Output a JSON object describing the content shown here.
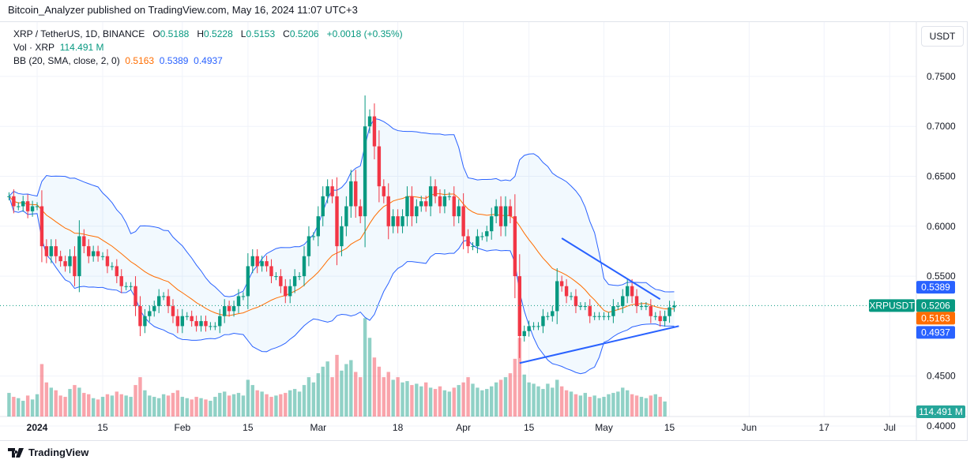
{
  "header": {
    "published": "Bitcoin_Analyzer published on TradingView.com, May 16, 2024 11:07 UTC+3"
  },
  "legend": {
    "symbol": "XRP / TetherUS, 1D, BINANCE",
    "o_label": "O",
    "o": "0.5188",
    "h_label": "H",
    "h": "0.5228",
    "l_label": "L",
    "l": "0.5153",
    "c_label": "C",
    "c": "0.5206",
    "change": "+0.0018 (+0.35%)",
    "vol_label": "Vol · XRP",
    "vol": "114.491 M",
    "bb_label": "BB (20, SMA, close, 2, 0)",
    "bb_basis": "0.5163",
    "bb_upper": "0.5389",
    "bb_lower": "0.4937"
  },
  "currency_button": "USDT",
  "footer": {
    "brand": "TradingView"
  },
  "colors": {
    "up": "#089981",
    "down": "#f23645",
    "bb_basis": "#ff6d00",
    "bb_band": "#2962ff",
    "trendline": "#2962ff"
  },
  "chart_data": {
    "type": "candlestick",
    "start_date": "2023-12-26",
    "ylim": [
      0.385,
      0.76
    ],
    "y_ticks": [
      "0.4000",
      "0.4500",
      "0.5500",
      "0.6000",
      "0.6500",
      "0.7000",
      "0.7500"
    ],
    "x_ticks": [
      {
        "label": "2024",
        "date": "2024-01-01"
      },
      {
        "label": "15",
        "date": "2024-01-15"
      },
      {
        "label": "Feb",
        "date": "2024-02-01"
      },
      {
        "label": "15",
        "date": "2024-02-15"
      },
      {
        "label": "Mar",
        "date": "2024-03-01"
      },
      {
        "label": "18",
        "date": "2024-03-18"
      },
      {
        "label": "Apr",
        "date": "2024-04-01"
      },
      {
        "label": "15",
        "date": "2024-04-15"
      },
      {
        "label": "May",
        "date": "2024-05-01"
      },
      {
        "label": "15",
        "date": "2024-05-15"
      },
      {
        "label": "Jun",
        "date": "2024-06-01"
      },
      {
        "label": "17",
        "date": "2024-06-17"
      },
      {
        "label": "Jul",
        "date": "2024-07-01"
      }
    ],
    "closes": [
      0.63,
      0.62,
      0.62,
      0.625,
      0.615,
      0.62,
      0.62,
      0.58,
      0.57,
      0.58,
      0.57,
      0.565,
      0.56,
      0.57,
      0.55,
      0.59,
      0.58,
      0.57,
      0.575,
      0.57,
      0.57,
      0.56,
      0.56,
      0.55,
      0.54,
      0.54,
      0.54,
      0.52,
      0.5,
      0.51,
      0.515,
      0.52,
      0.53,
      0.53,
      0.52,
      0.51,
      0.5,
      0.51,
      0.51,
      0.505,
      0.5,
      0.505,
      0.5,
      0.5,
      0.5,
      0.51,
      0.52,
      0.515,
      0.52,
      0.53,
      0.53,
      0.56,
      0.57,
      0.56,
      0.565,
      0.56,
      0.55,
      0.55,
      0.54,
      0.53,
      0.54,
      0.55,
      0.55,
      0.57,
      0.59,
      0.59,
      0.61,
      0.63,
      0.64,
      0.63,
      0.58,
      0.6,
      0.62,
      0.645,
      0.62,
      0.61,
      0.7,
      0.71,
      0.68,
      0.64,
      0.63,
      0.6,
      0.61,
      0.6,
      0.61,
      0.63,
      0.61,
      0.62,
      0.625,
      0.62,
      0.64,
      0.63,
      0.62,
      0.63,
      0.63,
      0.61,
      0.62,
      0.59,
      0.58,
      0.58,
      0.59,
      0.59,
      0.595,
      0.61,
      0.62,
      0.6,
      0.62,
      0.61,
      0.55,
      0.49,
      0.495,
      0.5,
      0.5,
      0.5,
      0.51,
      0.51,
      0.515,
      0.545,
      0.54,
      0.53,
      0.53,
      0.52,
      0.52,
      0.52,
      0.51,
      0.51,
      0.51,
      0.51,
      0.51,
      0.52,
      0.52,
      0.53,
      0.54,
      0.53,
      0.52,
      0.52,
      0.52,
      0.51,
      0.51,
      0.505,
      0.51,
      0.5188,
      0.5206
    ],
    "volumes_m": [
      180,
      150,
      140,
      120,
      160,
      130,
      170,
      400,
      260,
      220,
      200,
      160,
      150,
      210,
      240,
      220,
      180,
      170,
      140,
      130,
      150,
      170,
      160,
      190,
      170,
      160,
      150,
      240,
      300,
      200,
      160,
      150,
      140,
      170,
      160,
      180,
      200,
      150,
      140,
      130,
      150,
      140,
      130,
      120,
      150,
      180,
      190,
      160,
      170,
      180,
      160,
      280,
      240,
      200,
      190,
      170,
      150,
      160,
      170,
      180,
      200,
      210,
      190,
      240,
      300,
      260,
      330,
      380,
      420,
      300,
      470,
      350,
      400,
      430,
      340,
      300,
      750,
      600,
      450,
      380,
      300,
      340,
      280,
      300,
      260,
      270,
      240,
      250,
      230,
      260,
      220,
      210,
      230,
      200,
      190,
      220,
      240,
      260,
      300,
      250,
      220,
      200,
      210,
      230,
      260,
      280,
      300,
      330,
      440,
      600,
      320,
      260,
      250,
      230,
      210,
      250,
      220,
      280,
      230,
      200,
      190,
      170,
      160,
      180,
      150,
      160,
      140,
      150,
      170,
      180,
      190,
      220,
      200,
      170,
      160,
      150,
      140,
      160,
      170,
      150,
      114.491
    ],
    "annotations": [
      {
        "type": "trendline",
        "from": {
          "date": "2024-04-22",
          "price": 0.588
        },
        "to": {
          "date": "2024-05-13",
          "price": 0.527
        }
      },
      {
        "type": "trendline",
        "from": {
          "date": "2024-04-13",
          "price": 0.463
        },
        "to": {
          "date": "2024-05-17",
          "price": 0.5
        }
      }
    ],
    "price_labels": {
      "symbol": "XRPUSDT",
      "last": "0.5206",
      "bb_upper": "0.5389",
      "bb_basis": "0.5163",
      "bb_lower": "0.4937",
      "volume": "114.491 M"
    }
  }
}
